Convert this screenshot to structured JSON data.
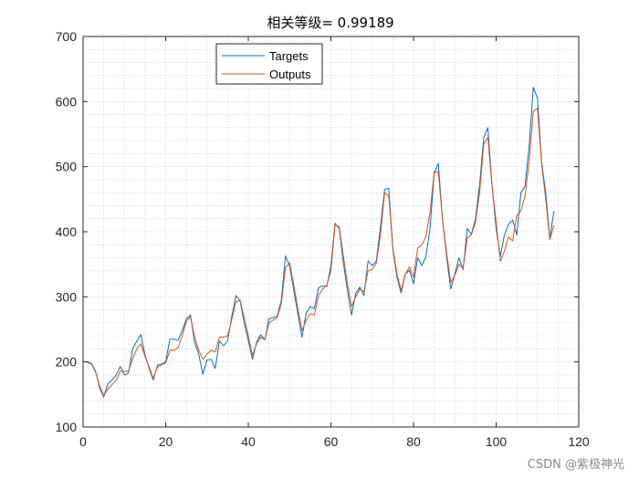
{
  "chart_data": {
    "type": "line",
    "title": "相关等级= 0.99189",
    "xlabel": "",
    "ylabel": "",
    "xlim": [
      0,
      120
    ],
    "ylim": [
      100,
      700
    ],
    "xticks": [
      0,
      20,
      40,
      60,
      80,
      100,
      120
    ],
    "yticks": [
      100,
      200,
      300,
      400,
      500,
      600,
      700
    ],
    "grid": "minor-dotted",
    "legend_position": "top-left-inside",
    "colors": {
      "targets": "#0072BD",
      "outputs": "#D95319",
      "axis": "#262626",
      "grid": "#bdbdbd"
    },
    "x": [
      1,
      2,
      3,
      4,
      5,
      6,
      7,
      8,
      9,
      10,
      11,
      12,
      13,
      14,
      15,
      16,
      17,
      18,
      19,
      20,
      21,
      22,
      23,
      24,
      25,
      26,
      27,
      28,
      29,
      30,
      31,
      32,
      33,
      34,
      35,
      36,
      37,
      38,
      39,
      40,
      41,
      42,
      43,
      44,
      45,
      46,
      47,
      48,
      49,
      50,
      51,
      52,
      53,
      54,
      55,
      56,
      57,
      58,
      59,
      60,
      61,
      62,
      63,
      64,
      65,
      66,
      67,
      68,
      69,
      70,
      71,
      72,
      73,
      74,
      75,
      76,
      77,
      78,
      79,
      80,
      81,
      82,
      83,
      84,
      85,
      86,
      87,
      88,
      89,
      90,
      91,
      92,
      93,
      94,
      95,
      96,
      97,
      98,
      99,
      100,
      101,
      102,
      103,
      104,
      105,
      106,
      107,
      108,
      109,
      110,
      111,
      112,
      113,
      114
    ],
    "series": [
      {
        "name": "Targets",
        "values": [
          200,
          198,
          186,
          160,
          146,
          166,
          172,
          180,
          193,
          180,
          183,
          220,
          232,
          242,
          210,
          190,
          172,
          195,
          197,
          200,
          235,
          235,
          233,
          248,
          266,
          272,
          230,
          212,
          181,
          203,
          204,
          190,
          232,
          225,
          232,
          270,
          302,
          294,
          260,
          233,
          204,
          230,
          242,
          234,
          266,
          268,
          270,
          295,
          363,
          348,
          310,
          274,
          238,
          275,
          285,
          282,
          314,
          317,
          316,
          348,
          413,
          405,
          353,
          310,
          272,
          305,
          315,
          302,
          355,
          348,
          355,
          408,
          465,
          467,
          372,
          330,
          306,
          335,
          341,
          320,
          360,
          348,
          362,
          405,
          490,
          505,
          420,
          362,
          312,
          335,
          360,
          342,
          405,
          396,
          420,
          472,
          545,
          560,
          472,
          405,
          362,
          395,
          412,
          418,
          395,
          460,
          470,
          532,
          622,
          605,
          508,
          460,
          390,
          432
        ]
      },
      {
        "name": "Outputs",
        "values": [
          199,
          197,
          185,
          163,
          148,
          158,
          165,
          172,
          186,
          185,
          186,
          205,
          220,
          228,
          208,
          192,
          175,
          192,
          195,
          198,
          218,
          218,
          222,
          240,
          262,
          270,
          238,
          218,
          204,
          212,
          218,
          215,
          238,
          238,
          240,
          265,
          292,
          295,
          268,
          240,
          210,
          228,
          238,
          234,
          260,
          264,
          268,
          290,
          345,
          352,
          318,
          282,
          248,
          264,
          274,
          272,
          302,
          312,
          318,
          340,
          410,
          408,
          363,
          320,
          285,
          300,
          312,
          308,
          340,
          342,
          352,
          395,
          460,
          455,
          375,
          335,
          310,
          335,
          346,
          330,
          375,
          380,
          392,
          430,
          492,
          492,
          420,
          368,
          322,
          333,
          350,
          344,
          390,
          395,
          415,
          460,
          535,
          545,
          470,
          415,
          355,
          370,
          392,
          386,
          425,
          432,
          455,
          508,
          585,
          590,
          505,
          450,
          388,
          410
        ]
      }
    ],
    "legend": [
      "Targets",
      "Outputs"
    ],
    "watermark": "CSDN @紫极神光"
  }
}
